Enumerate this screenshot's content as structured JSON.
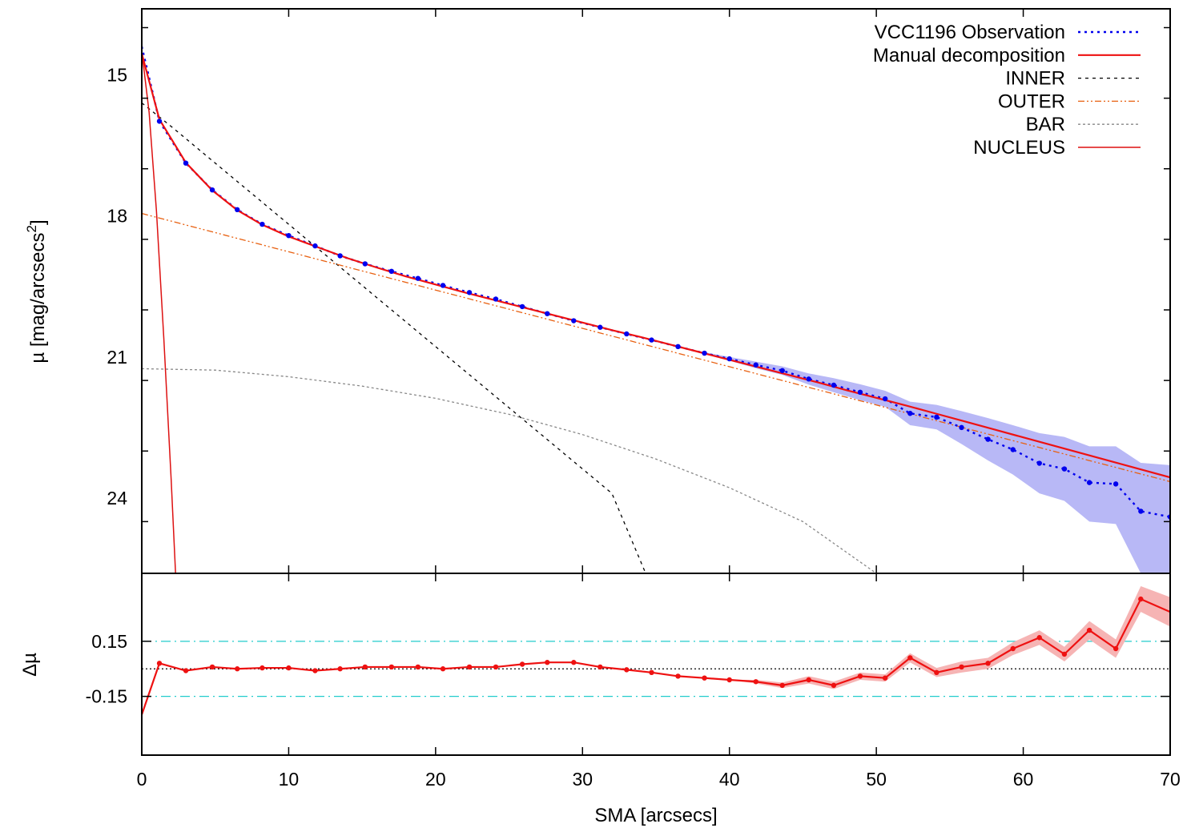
{
  "chart_data": [
    {
      "type": "line",
      "panel": "profile",
      "ylabel_base": "µ [mag/arcsecs",
      "ylabel_sup": "2",
      "ylabel_end": "]",
      "xlim": [
        0,
        70
      ],
      "ylim": [
        13.6,
        25.6
      ],
      "y_inverted": true,
      "y_ticks": [
        15,
        18,
        21,
        24
      ],
      "x_ticks": [
        0,
        10,
        20,
        30,
        40,
        50,
        60,
        70
      ],
      "legend_position": "top-right",
      "legend": [
        {
          "label": "VCC1196 Observation",
          "color": "#0000ee",
          "style": "dotted-thick"
        },
        {
          "label": "Manual decomposition",
          "color": "#ee1111",
          "style": "solid"
        },
        {
          "label": "INNER",
          "color": "#000000",
          "style": "dash-dot"
        },
        {
          "label": "OUTER",
          "color": "#e86010",
          "style": "dash-dot-dot"
        },
        {
          "label": "BAR",
          "color": "#888888",
          "style": "dashed"
        },
        {
          "label": "NUCLEUS",
          "color": "#dd1111",
          "style": "solid-thin"
        }
      ],
      "series": [
        {
          "name": "VCC1196 Observation",
          "x": [
            0,
            1.2,
            3.0,
            4.8,
            6.5,
            8.2,
            10.0,
            11.8,
            13.5,
            15.2,
            17.0,
            18.8,
            20.5,
            22.3,
            24.1,
            25.9,
            27.6,
            29.4,
            31.2,
            33.0,
            34.7,
            36.5,
            38.3,
            40.0,
            41.8,
            43.6,
            45.4,
            47.1,
            48.9,
            50.6,
            52.3,
            54.1,
            55.8,
            57.6,
            59.3,
            61.1,
            62.8,
            64.5,
            66.3,
            68.0,
            70.0
          ],
          "y": [
            14.4,
            15.99,
            16.88,
            17.45,
            17.87,
            18.18,
            18.42,
            18.64,
            18.85,
            19.02,
            19.18,
            19.33,
            19.48,
            19.63,
            19.77,
            19.93,
            20.08,
            20.23,
            20.37,
            20.51,
            20.64,
            20.78,
            20.92,
            21.04,
            21.17,
            21.29,
            21.47,
            21.6,
            21.75,
            21.89,
            22.2,
            22.28,
            22.5,
            22.75,
            22.97,
            23.26,
            23.38,
            23.67,
            23.7,
            24.28,
            24.4
          ],
          "band_low": [
            14.4,
            15.99,
            16.88,
            17.45,
            17.87,
            18.18,
            18.42,
            18.64,
            18.85,
            19.02,
            19.18,
            19.33,
            19.48,
            19.63,
            19.77,
            19.93,
            20.08,
            20.23,
            20.37,
            20.51,
            20.64,
            20.78,
            20.9,
            21.0,
            21.1,
            21.2,
            21.35,
            21.45,
            21.58,
            21.72,
            21.95,
            22.02,
            22.15,
            22.3,
            22.45,
            22.62,
            22.7,
            22.9,
            22.9,
            23.25,
            23.3
          ],
          "band_high": [
            14.4,
            15.99,
            16.88,
            17.45,
            17.87,
            18.18,
            18.42,
            18.64,
            18.85,
            19.02,
            19.18,
            19.33,
            19.48,
            19.63,
            19.77,
            19.93,
            20.08,
            20.23,
            20.37,
            20.51,
            20.64,
            20.78,
            20.94,
            21.08,
            21.24,
            21.38,
            21.59,
            21.75,
            21.92,
            22.06,
            22.45,
            22.54,
            22.85,
            23.2,
            23.5,
            23.9,
            24.06,
            24.5,
            24.55,
            25.6,
            25.6
          ]
        },
        {
          "name": "Manual decomposition",
          "x": [
            0,
            1.2,
            3.0,
            4.8,
            6.5,
            8.2,
            10.0,
            12,
            14,
            16,
            18,
            20,
            22,
            24,
            26,
            28,
            30,
            32,
            34,
            36,
            38,
            40,
            42,
            44,
            46,
            48,
            50,
            52,
            54,
            56,
            58,
            60,
            62,
            64,
            66,
            68,
            70
          ],
          "y": [
            14.55,
            15.95,
            16.87,
            17.46,
            17.88,
            18.19,
            18.44,
            18.67,
            18.9,
            19.1,
            19.29,
            19.46,
            19.63,
            19.79,
            19.95,
            20.11,
            20.27,
            20.43,
            20.58,
            20.74,
            20.9,
            21.06,
            21.22,
            21.38,
            21.54,
            21.71,
            21.87,
            22.03,
            22.2,
            22.37,
            22.54,
            22.71,
            22.88,
            23.05,
            23.22,
            23.39,
            23.56
          ]
        },
        {
          "name": "INNER",
          "x": [
            0,
            2,
            4,
            6,
            8,
            10,
            12,
            14,
            16,
            18,
            20,
            22,
            24,
            26,
            28,
            30,
            32,
            34.3
          ],
          "y": [
            15.6,
            16.1,
            16.62,
            17.14,
            17.66,
            18.18,
            18.7,
            19.22,
            19.74,
            20.26,
            20.78,
            21.3,
            21.82,
            22.34,
            22.86,
            23.38,
            23.9,
            25.6
          ]
        },
        {
          "name": "OUTER",
          "x": [
            0,
            70
          ],
          "y": [
            17.95,
            23.65
          ]
        },
        {
          "name": "BAR",
          "x": [
            0,
            5,
            10,
            15,
            20,
            25,
            30,
            35,
            40,
            45,
            50
          ],
          "y": [
            21.25,
            21.28,
            21.42,
            21.62,
            21.88,
            22.22,
            22.65,
            23.17,
            23.78,
            24.5,
            25.6
          ]
        },
        {
          "name": "NUCLEUS",
          "x": [
            0,
            0.5,
            1.0,
            1.5,
            2.0,
            2.3
          ],
          "y": [
            14.5,
            15.8,
            17.9,
            20.6,
            23.6,
            25.6
          ]
        }
      ]
    },
    {
      "type": "line",
      "panel": "residual",
      "ylabel": "Δµ",
      "xlabel": "SMA [arcsecs]",
      "xlim": [
        0,
        70
      ],
      "ylim": [
        -0.47,
        0.52
      ],
      "y_ticks": [
        0.15,
        -0.15
      ],
      "y_tick_labels": [
        "0.15",
        "-0.15"
      ],
      "reference_lines": [
        {
          "y": 0.15,
          "color": "#22cccc",
          "style": "dash-dot"
        },
        {
          "y": 0,
          "color": "#000000",
          "style": "dotted"
        },
        {
          "y": -0.15,
          "color": "#22cccc",
          "style": "dash-dot"
        }
      ],
      "series": [
        {
          "name": "residual",
          "color": "#ee1111",
          "x": [
            0,
            1.2,
            3.0,
            4.8,
            6.5,
            8.2,
            10.0,
            11.8,
            13.5,
            15.2,
            17.0,
            18.8,
            20.5,
            22.3,
            24.1,
            25.9,
            27.6,
            29.4,
            31.2,
            33.0,
            34.7,
            36.5,
            38.3,
            40.0,
            41.8,
            43.6,
            45.4,
            47.1,
            48.9,
            50.6,
            52.3,
            54.1,
            55.8,
            57.6,
            59.3,
            61.1,
            62.8,
            64.5,
            66.3,
            68.0,
            70.0
          ],
          "y": [
            -0.25,
            0.03,
            -0.01,
            0.01,
            0.0,
            0.005,
            0.005,
            -0.01,
            0.0,
            0.01,
            0.01,
            0.01,
            0.0,
            0.01,
            0.01,
            0.025,
            0.035,
            0.035,
            0.01,
            -0.005,
            -0.02,
            -0.04,
            -0.05,
            -0.06,
            -0.07,
            -0.09,
            -0.06,
            -0.09,
            -0.04,
            -0.05,
            0.06,
            -0.02,
            0.01,
            0.03,
            0.11,
            0.17,
            0.08,
            0.21,
            0.11,
            0.38,
            0.31
          ],
          "band_half_width": [
            0,
            0,
            0,
            0,
            0,
            0,
            0,
            0,
            0,
            0,
            0,
            0,
            0,
            0,
            0,
            0,
            0,
            0,
            0,
            0,
            0,
            0,
            0,
            0,
            0.01,
            0.015,
            0.02,
            0.02,
            0.02,
            0.02,
            0.025,
            0.025,
            0.03,
            0.03,
            0.035,
            0.04,
            0.04,
            0.05,
            0.05,
            0.07,
            0.08
          ]
        }
      ]
    }
  ]
}
